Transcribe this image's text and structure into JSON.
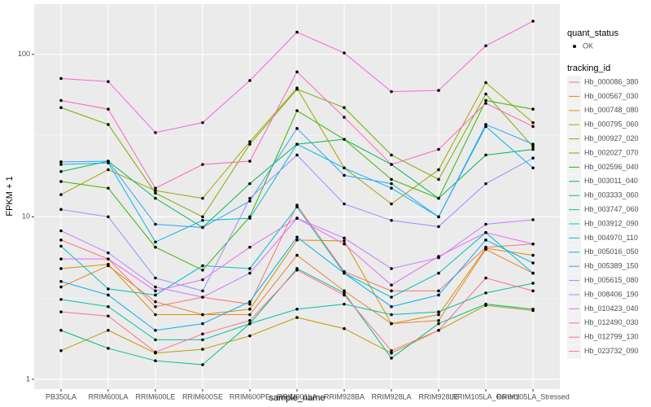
{
  "chart_data": {
    "type": "line",
    "log_y": true,
    "grid": true,
    "x_label": "sample_name",
    "y_label": "FPKM + 1",
    "categories": [
      "PB350LA",
      "RRIM600LA",
      "RRIM600LE",
      "RRIM600SE",
      "RRIM600PE",
      "RRIM901LA",
      "RRIM928BA",
      "RRIM928LA",
      "RRIM928LE",
      "RRIM105LA_Control",
      "RRIM105LA_Stressed"
    ],
    "ylim": [
      0.87,
      204
    ],
    "yticks": [
      1,
      10,
      100
    ],
    "legend_status_title": "quant_status",
    "legend_status_label": "OK",
    "legend_title": "tracking_id",
    "series": [
      {
        "name": "Hb_000086_380",
        "color": "#F8766D",
        "values": [
          7.2,
          5.5,
          2.8,
          3.2,
          2.9,
          11.8,
          4.6,
          3.5,
          3.5,
          6.5,
          6.8
        ]
      },
      {
        "name": "Hb_000567_030",
        "color": "#EA8331",
        "values": [
          3.7,
          5.0,
          3.0,
          2.5,
          2.5,
          5.8,
          3.5,
          2.2,
          2.3,
          6.3,
          4.5
        ]
      },
      {
        "name": "Hb_000748_080",
        "color": "#D89000",
        "values": [
          4.8,
          5.1,
          2.5,
          2.5,
          2.7,
          7.2,
          7.1,
          2.2,
          2.5,
          6.4,
          5.8
        ]
      },
      {
        "name": "Hb_000795_060",
        "color": "#C09B00",
        "values": [
          1.5,
          2.0,
          1.45,
          1.53,
          1.85,
          2.4,
          2.05,
          1.45,
          2.0,
          2.85,
          2.65
        ]
      },
      {
        "name": "Hb_000927_020",
        "color": "#A3A500",
        "values": [
          13.7,
          19.5,
          14.5,
          13,
          29,
          62,
          20,
          12,
          19.5,
          67,
          38
        ]
      },
      {
        "name": "Hb_002027_070",
        "color": "#7CAE00",
        "values": [
          47,
          37,
          14,
          10,
          28,
          61,
          47,
          24,
          17,
          57,
          27
        ]
      },
      {
        "name": "Hb_002596_040",
        "color": "#39B600",
        "values": [
          16.5,
          15,
          6.5,
          4.7,
          10,
          45,
          30,
          17,
          13,
          52,
          46
        ]
      },
      {
        "name": "Hb_003011_040",
        "color": "#00BB4E",
        "values": [
          19,
          22,
          13,
          8.6,
          16,
          28,
          30,
          21,
          13,
          24,
          26
        ]
      },
      {
        "name": "Hb_003333_060",
        "color": "#00BF7D",
        "values": [
          2.0,
          1.55,
          1.3,
          1.23,
          2.2,
          4.8,
          3.4,
          1.35,
          2.2,
          2.9,
          2.7
        ]
      },
      {
        "name": "Hb_003747_060",
        "color": "#00C1A3",
        "values": [
          3.1,
          2.8,
          1.75,
          1.75,
          2.2,
          2.7,
          2.9,
          2.5,
          2.6,
          3.4,
          3.9
        ]
      },
      {
        "name": "Hb_003912_090",
        "color": "#00BFC4",
        "values": [
          6.6,
          3.6,
          3.3,
          5.0,
          4.8,
          11.5,
          4.5,
          3.2,
          4.5,
          8,
          4.5
        ]
      },
      {
        "name": "Hb_004970_110",
        "color": "#00BAE0",
        "values": [
          21,
          21.5,
          7,
          9.5,
          9.8,
          28,
          20,
          15,
          10,
          36,
          20
        ]
      },
      {
        "name": "Hb_005016_050",
        "color": "#00B0F6",
        "values": [
          4.0,
          3.3,
          2.0,
          2.2,
          3.0,
          7.5,
          4.5,
          2.8,
          3.3,
          7.2,
          5.2
        ]
      },
      {
        "name": "Hb_005389_150",
        "color": "#35A2FF",
        "values": [
          21.8,
          22,
          9,
          8.6,
          12.5,
          35,
          18,
          16,
          10,
          37,
          28
        ]
      },
      {
        "name": "Hb_005615_080",
        "color": "#9590FF",
        "values": [
          11.1,
          10,
          4.2,
          3.5,
          13,
          24,
          12,
          9.5,
          8.7,
          16,
          23
        ]
      },
      {
        "name": "Hb_008406_190",
        "color": "#C77CFF",
        "values": [
          8.2,
          6,
          3.7,
          3.2,
          4.5,
          9.8,
          7.4,
          4.8,
          5.6,
          9,
          9.6
        ]
      },
      {
        "name": "Hb_010423_040",
        "color": "#E76BF3",
        "values": [
          5.5,
          5.5,
          3.5,
          4.1,
          6.5,
          9.8,
          6.8,
          3.8,
          5.7,
          8,
          6.8
        ]
      },
      {
        "name": "Hb_012490_030",
        "color": "#FA62DB",
        "values": [
          71,
          68,
          33,
          38,
          69,
          137,
          102,
          59,
          60,
          113,
          160
        ]
      },
      {
        "name": "Hb_012799_130",
        "color": "#FF62BC",
        "values": [
          52,
          46,
          15,
          21,
          22,
          78,
          41,
          21,
          26,
          50,
          36
        ]
      },
      {
        "name": "Hb_023732_090",
        "color": "#FF6C91",
        "values": [
          2.6,
          2.45,
          1.47,
          1.9,
          2.3,
          4.7,
          3.3,
          1.5,
          2.0,
          4.2,
          3.5
        ]
      }
    ]
  }
}
